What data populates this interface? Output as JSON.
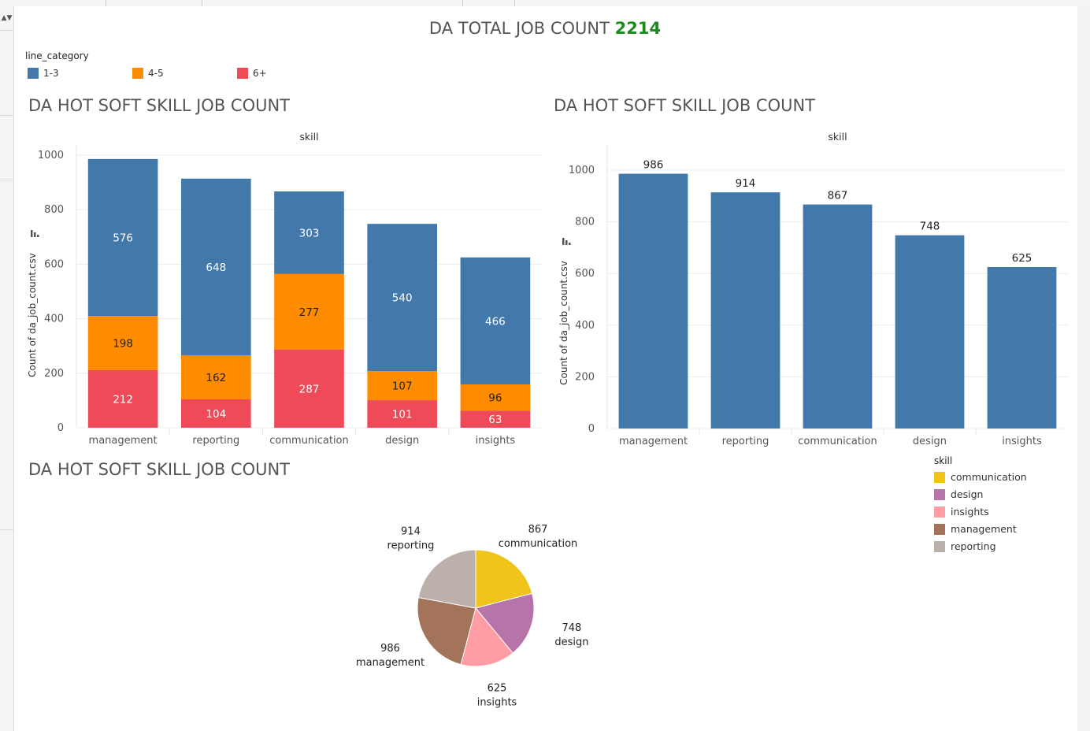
{
  "header": {
    "title_prefix": "DA TOTAL JOB COUNT",
    "total": "2214"
  },
  "colors": {
    "one_to_three": "#4378aa",
    "four_to_five": "#ff8c00",
    "six_plus": "#ef4a57",
    "communication": "#f1c41b",
    "design": "#b674a8",
    "insights": "#ff9ca4",
    "management": "#a37459",
    "reporting": "#bbb0ab",
    "title_green": "#1f8a1f"
  },
  "legend_line_category": {
    "title": "line_category",
    "items": [
      {
        "label": "1-3",
        "color": "#4378aa"
      },
      {
        "label": "4-5",
        "color": "#ff8c00"
      },
      {
        "label": "6+",
        "color": "#ef4a57"
      }
    ]
  },
  "legend_skill": {
    "title": "skill",
    "items": [
      {
        "label": "communication",
        "color": "#f1c41b"
      },
      {
        "label": "design",
        "color": "#b674a8"
      },
      {
        "label": "insights",
        "color": "#ff9ca4"
      },
      {
        "label": "management",
        "color": "#a37459"
      },
      {
        "label": "reporting",
        "color": "#bbb0ab"
      }
    ]
  },
  "chart_data": [
    {
      "type": "bar",
      "stacked": true,
      "title": "DA HOT SOFT SKILL JOB COUNT",
      "header_label": "skill",
      "ylabel": "Count of da_job_count.csv",
      "ylim": [
        0,
        1000
      ],
      "yticks": [
        0,
        200,
        400,
        600,
        800,
        1000
      ],
      "categories": [
        "management",
        "reporting",
        "communication",
        "design",
        "insights"
      ],
      "series": [
        {
          "name": "6+",
          "color": "#ef4a57",
          "label_color": "#ffffff",
          "values": [
            212,
            104,
            287,
            101,
            63
          ]
        },
        {
          "name": "4-5",
          "color": "#ff8c00",
          "label_color": "#222222",
          "values": [
            198,
            162,
            277,
            107,
            96
          ]
        },
        {
          "name": "1-3",
          "color": "#4378aa",
          "label_color": "#ffffff",
          "values": [
            576,
            648,
            303,
            540,
            466
          ]
        }
      ],
      "grid": true
    },
    {
      "type": "bar",
      "title": "DA HOT SOFT SKILL JOB COUNT",
      "header_label": "skill",
      "ylabel": "Count of da_job_count.csv",
      "ylim": [
        0,
        1000
      ],
      "yticks": [
        0,
        200,
        400,
        600,
        800,
        1000
      ],
      "categories": [
        "management",
        "reporting",
        "communication",
        "design",
        "insights"
      ],
      "values": [
        986,
        914,
        867,
        748,
        625
      ],
      "color": "#4378aa",
      "grid": true
    },
    {
      "type": "pie",
      "title": "DA HOT SOFT SKILL JOB COUNT",
      "slices": [
        {
          "label": "communication",
          "value": 867,
          "color": "#f1c41b"
        },
        {
          "label": "design",
          "value": 748,
          "color": "#b674a8"
        },
        {
          "label": "insights",
          "value": 625,
          "color": "#ff9ca4"
        },
        {
          "label": "management",
          "value": 986,
          "color": "#a37459"
        },
        {
          "label": "reporting",
          "value": 914,
          "color": "#bbb0ab"
        }
      ]
    }
  ]
}
